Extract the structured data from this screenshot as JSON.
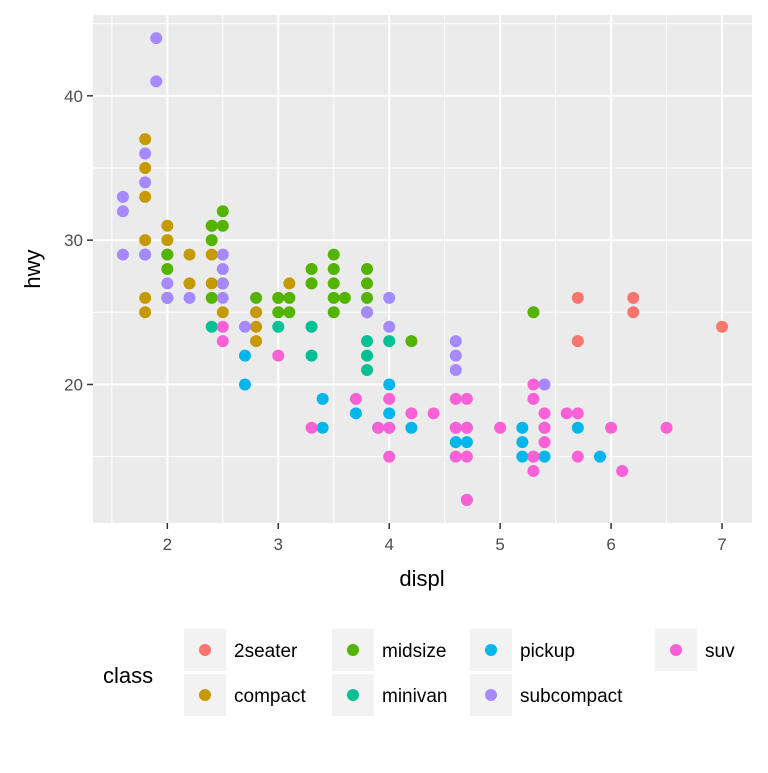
{
  "chart_data": {
    "type": "scatter",
    "xlabel": "displ",
    "ylabel": "hwy",
    "xlim": [
      1.33,
      7.27
    ],
    "ylim": [
      10.4,
      45.6
    ],
    "xticks": [
      2,
      3,
      4,
      5,
      6,
      7
    ],
    "yticks": [
      20,
      30,
      40
    ],
    "grid": true,
    "legend": {
      "title": "class",
      "position": "bottom",
      "entries": [
        "2seater",
        "compact",
        "midsize",
        "minivan",
        "pickup",
        "subcompact",
        "suv"
      ]
    },
    "colors": {
      "2seater": "#F8766D",
      "compact": "#C49A00",
      "midsize": "#53B400",
      "minivan": "#00C094",
      "pickup": "#00B6EB",
      "subcompact": "#A58AFF",
      "suv": "#FB61D7"
    },
    "series": [
      {
        "name": "2seater",
        "points": [
          [
            5.7,
            26
          ],
          [
            5.7,
            23
          ],
          [
            6.2,
            26
          ],
          [
            6.2,
            25
          ],
          [
            7.0,
            24
          ]
        ]
      },
      {
        "name": "compact",
        "points": [
          [
            1.8,
            37
          ],
          [
            1.8,
            35
          ],
          [
            1.8,
            33
          ],
          [
            1.8,
            30
          ],
          [
            1.8,
            26
          ],
          [
            1.8,
            25
          ],
          [
            2.0,
            31
          ],
          [
            2.0,
            30
          ],
          [
            2.0,
            29
          ],
          [
            2.0,
            26
          ],
          [
            2.2,
            29
          ],
          [
            2.2,
            27
          ],
          [
            2.4,
            31
          ],
          [
            2.4,
            29
          ],
          [
            2.4,
            27
          ],
          [
            2.5,
            27
          ],
          [
            2.5,
            25
          ],
          [
            2.8,
            25
          ],
          [
            2.8,
            24
          ],
          [
            2.8,
            23
          ],
          [
            3.0,
            26
          ],
          [
            3.1,
            27
          ],
          [
            3.3,
            27
          ]
        ]
      },
      {
        "name": "midsize",
        "points": [
          [
            1.8,
            29
          ],
          [
            2.0,
            29
          ],
          [
            2.0,
            28
          ],
          [
            2.0,
            26
          ],
          [
            2.4,
            31
          ],
          [
            2.4,
            30
          ],
          [
            2.4,
            26
          ],
          [
            2.5,
            32
          ],
          [
            2.5,
            31
          ],
          [
            2.5,
            27
          ],
          [
            2.8,
            26
          ],
          [
            3.0,
            26
          ],
          [
            3.0,
            25
          ],
          [
            3.1,
            26
          ],
          [
            3.1,
            25
          ],
          [
            3.3,
            28
          ],
          [
            3.3,
            27
          ],
          [
            3.5,
            29
          ],
          [
            3.5,
            28
          ],
          [
            3.5,
            27
          ],
          [
            3.5,
            26
          ],
          [
            3.5,
            25
          ],
          [
            3.6,
            26
          ],
          [
            3.8,
            28
          ],
          [
            3.8,
            27
          ],
          [
            3.8,
            26
          ],
          [
            3.8,
            25
          ],
          [
            4.2,
            23
          ],
          [
            5.3,
            25
          ]
        ]
      },
      {
        "name": "minivan",
        "points": [
          [
            2.4,
            24
          ],
          [
            3.0,
            24
          ],
          [
            3.3,
            24
          ],
          [
            3.3,
            22
          ],
          [
            3.8,
            23
          ],
          [
            3.8,
            22
          ],
          [
            3.8,
            21
          ],
          [
            4.0,
            23
          ]
        ]
      },
      {
        "name": "pickup",
        "points": [
          [
            2.7,
            22
          ],
          [
            2.7,
            20
          ],
          [
            3.4,
            19
          ],
          [
            3.4,
            17
          ],
          [
            3.7,
            18
          ],
          [
            3.9,
            17
          ],
          [
            4.0,
            20
          ],
          [
            4.0,
            18
          ],
          [
            4.0,
            17
          ],
          [
            4.2,
            17
          ],
          [
            4.6,
            17
          ],
          [
            4.6,
            16
          ],
          [
            4.7,
            17
          ],
          [
            4.7,
            16
          ],
          [
            4.7,
            12
          ],
          [
            5.2,
            17
          ],
          [
            5.2,
            16
          ],
          [
            5.2,
            15
          ],
          [
            5.3,
            15
          ],
          [
            5.4,
            17
          ],
          [
            5.4,
            15
          ],
          [
            5.7,
            17
          ],
          [
            5.9,
            15
          ]
        ]
      },
      {
        "name": "subcompact",
        "points": [
          [
            1.6,
            33
          ],
          [
            1.6,
            32
          ],
          [
            1.6,
            29
          ],
          [
            1.8,
            36
          ],
          [
            1.8,
            34
          ],
          [
            1.8,
            29
          ],
          [
            1.9,
            44
          ],
          [
            1.9,
            41
          ],
          [
            2.0,
            27
          ],
          [
            2.0,
            26
          ],
          [
            2.2,
            26
          ],
          [
            2.5,
            29
          ],
          [
            2.5,
            28
          ],
          [
            2.5,
            27
          ],
          [
            2.5,
            26
          ],
          [
            2.7,
            24
          ],
          [
            3.8,
            25
          ],
          [
            4.0,
            26
          ],
          [
            4.0,
            24
          ],
          [
            4.6,
            23
          ],
          [
            4.6,
            22
          ],
          [
            4.6,
            21
          ],
          [
            5.4,
            20
          ]
        ]
      },
      {
        "name": "suv",
        "points": [
          [
            2.5,
            24
          ],
          [
            2.5,
            23
          ],
          [
            3.0,
            22
          ],
          [
            3.3,
            17
          ],
          [
            3.7,
            19
          ],
          [
            3.9,
            17
          ],
          [
            4.0,
            19
          ],
          [
            4.0,
            17
          ],
          [
            4.0,
            15
          ],
          [
            4.2,
            18
          ],
          [
            4.4,
            18
          ],
          [
            4.6,
            19
          ],
          [
            4.6,
            17
          ],
          [
            4.6,
            15
          ],
          [
            4.7,
            19
          ],
          [
            4.7,
            17
          ],
          [
            4.7,
            15
          ],
          [
            4.7,
            12
          ],
          [
            5.0,
            17
          ],
          [
            5.3,
            20
          ],
          [
            5.3,
            19
          ],
          [
            5.3,
            15
          ],
          [
            5.3,
            14
          ],
          [
            5.4,
            18
          ],
          [
            5.4,
            17
          ],
          [
            5.4,
            16
          ],
          [
            5.6,
            18
          ],
          [
            5.7,
            18
          ],
          [
            5.7,
            15
          ],
          [
            6.0,
            17
          ],
          [
            6.1,
            14
          ],
          [
            6.5,
            17
          ]
        ]
      }
    ]
  }
}
